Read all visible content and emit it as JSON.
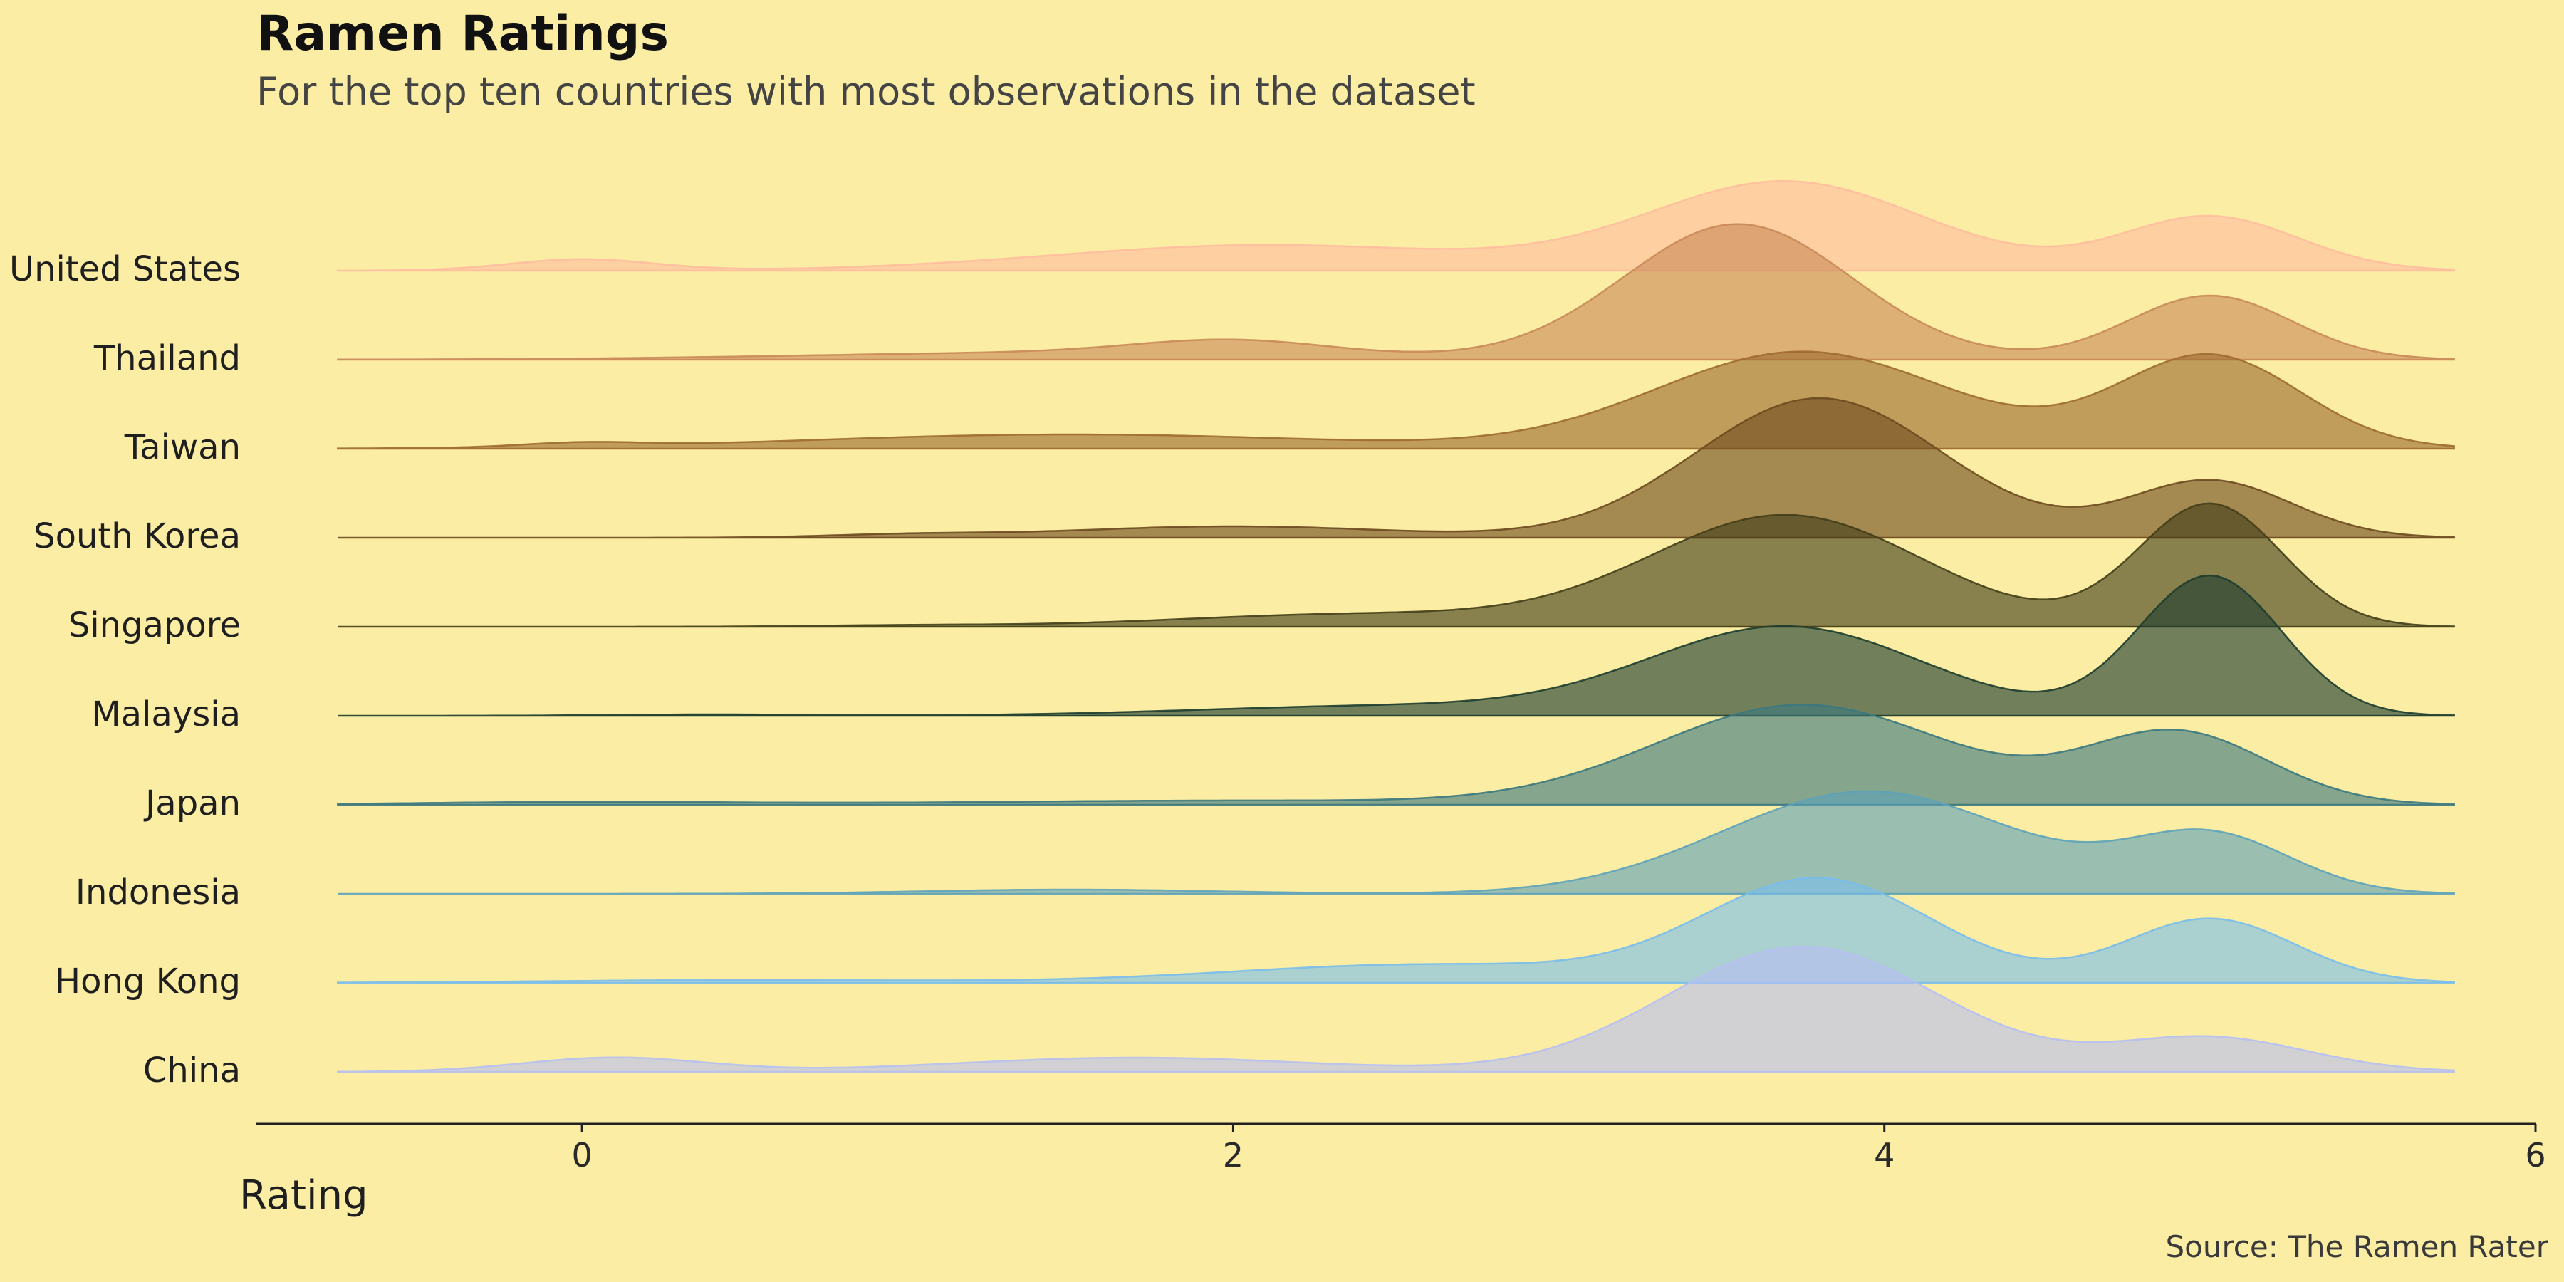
{
  "chart_data": {
    "type": "ridgeline",
    "title": "Ramen Ratings",
    "subtitle": "For the top ten countries with most observations in the dataset",
    "xlabel": "Rating",
    "ylabel": "",
    "caption": "Source: The Ramen Rater",
    "xlim": [
      -0.75,
      5.75
    ],
    "axis_range": [
      -1,
      6
    ],
    "xticks": [
      0,
      2,
      4,
      6
    ],
    "grid": false,
    "legend": "none",
    "fill_opacity": 0.62,
    "categories": [
      "United States",
      "Thailand",
      "Taiwan",
      "South Korea",
      "Singapore",
      "Malaysia",
      "Japan",
      "Indonesia",
      "Hong Kong",
      "China"
    ],
    "series": [
      {
        "name": "United States",
        "color": "#FFBC9F",
        "peaks": [
          {
            "center": 0.0,
            "sd": 0.22,
            "weight": 0.08
          },
          {
            "center": 2.1,
            "sd": 0.65,
            "weight": 0.18
          },
          {
            "center": 3.7,
            "sd": 0.42,
            "weight": 0.62
          },
          {
            "center": 5.0,
            "sd": 0.27,
            "weight": 0.38
          }
        ]
      },
      {
        "name": "Thailand",
        "color": "#C98958",
        "peaks": [
          {
            "center": 1.5,
            "sd": 0.8,
            "weight": 0.05
          },
          {
            "center": 2.0,
            "sd": 0.3,
            "weight": 0.1
          },
          {
            "center": 3.55,
            "sd": 0.35,
            "weight": 0.95
          },
          {
            "center": 5.0,
            "sd": 0.25,
            "weight": 0.45
          }
        ]
      },
      {
        "name": "Taiwan",
        "color": "#9D6A31",
        "peaks": [
          {
            "center": 0.0,
            "sd": 0.18,
            "weight": 0.03
          },
          {
            "center": 1.5,
            "sd": 0.8,
            "weight": 0.1
          },
          {
            "center": 3.75,
            "sd": 0.45,
            "weight": 0.68
          },
          {
            "center": 5.0,
            "sd": 0.28,
            "weight": 0.65
          }
        ]
      },
      {
        "name": "South Korea",
        "color": "#6D4A1E",
        "peaks": [
          {
            "center": 1.0,
            "sd": 0.25,
            "weight": 0.02
          },
          {
            "center": 2.0,
            "sd": 0.5,
            "weight": 0.08
          },
          {
            "center": 3.8,
            "sd": 0.38,
            "weight": 0.98
          },
          {
            "center": 5.0,
            "sd": 0.25,
            "weight": 0.4
          }
        ]
      },
      {
        "name": "Singapore",
        "color": "#423E18",
        "peaks": [
          {
            "center": 1.0,
            "sd": 0.3,
            "weight": 0.01
          },
          {
            "center": 2.4,
            "sd": 0.55,
            "weight": 0.09
          },
          {
            "center": 3.7,
            "sd": 0.42,
            "weight": 0.78
          },
          {
            "center": 5.0,
            "sd": 0.22,
            "weight": 0.86
          }
        ]
      },
      {
        "name": "Malaysia",
        "color": "#1C3C2E",
        "peaks": [
          {
            "center": 0.4,
            "sd": 0.3,
            "weight": 0.01
          },
          {
            "center": 2.5,
            "sd": 0.6,
            "weight": 0.07
          },
          {
            "center": 3.7,
            "sd": 0.42,
            "weight": 0.62
          },
          {
            "center": 5.0,
            "sd": 0.22,
            "weight": 0.98
          }
        ]
      },
      {
        "name": "Japan",
        "color": "#3B7880",
        "peaks": [
          {
            "center": 0.0,
            "sd": 0.5,
            "weight": 0.02
          },
          {
            "center": 2.0,
            "sd": 0.8,
            "weight": 0.03
          },
          {
            "center": 3.75,
            "sd": 0.45,
            "weight": 0.7
          },
          {
            "center": 4.9,
            "sd": 0.28,
            "weight": 0.5
          }
        ]
      },
      {
        "name": "Indonesia",
        "color": "#5EA2B9",
        "peaks": [
          {
            "center": 1.5,
            "sd": 0.45,
            "weight": 0.03
          },
          {
            "center": 3.95,
            "sd": 0.45,
            "weight": 0.72
          },
          {
            "center": 5.0,
            "sd": 0.25,
            "weight": 0.4
          }
        ]
      },
      {
        "name": "Hong Kong",
        "color": "#79BDEB",
        "peaks": [
          {
            "center": 0.5,
            "sd": 0.6,
            "weight": 0.02
          },
          {
            "center": 2.6,
            "sd": 0.6,
            "weight": 0.13
          },
          {
            "center": 3.8,
            "sd": 0.35,
            "weight": 0.72
          },
          {
            "center": 5.0,
            "sd": 0.26,
            "weight": 0.45
          }
        ]
      },
      {
        "name": "China",
        "color": "#B6BFF2",
        "peaks": [
          {
            "center": 0.1,
            "sd": 0.28,
            "weight": 0.1
          },
          {
            "center": 1.7,
            "sd": 0.55,
            "weight": 0.1
          },
          {
            "center": 3.75,
            "sd": 0.42,
            "weight": 0.88
          },
          {
            "center": 5.0,
            "sd": 0.3,
            "weight": 0.24
          }
        ]
      }
    ]
  }
}
